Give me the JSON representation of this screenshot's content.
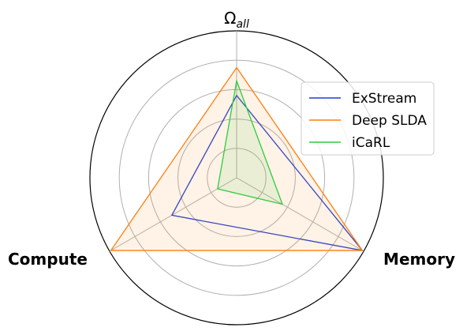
{
  "chart_data": {
    "type": "radar",
    "axes": [
      {
        "id": "omega",
        "label_main": "Ω",
        "label_sub": "all"
      },
      {
        "id": "memory",
        "label": "Memory"
      },
      {
        "id": "compute",
        "label": "Compute"
      }
    ],
    "rlim": [
      0,
      1
    ],
    "grid": true,
    "legend_position": "top-right",
    "series": [
      {
        "name": "ExStream",
        "color": "#1f3fd6",
        "fill": false,
        "values": [
          0.56,
          0.99,
          0.51
        ]
      },
      {
        "name": "Deep SLDA",
        "color": "#ff7f0e",
        "fill": true,
        "values": [
          0.75,
          0.99,
          0.99
        ]
      },
      {
        "name": "iCaRL",
        "color": "#2ecc40",
        "fill": true,
        "values": [
          0.66,
          0.36,
          0.15
        ]
      }
    ]
  }
}
